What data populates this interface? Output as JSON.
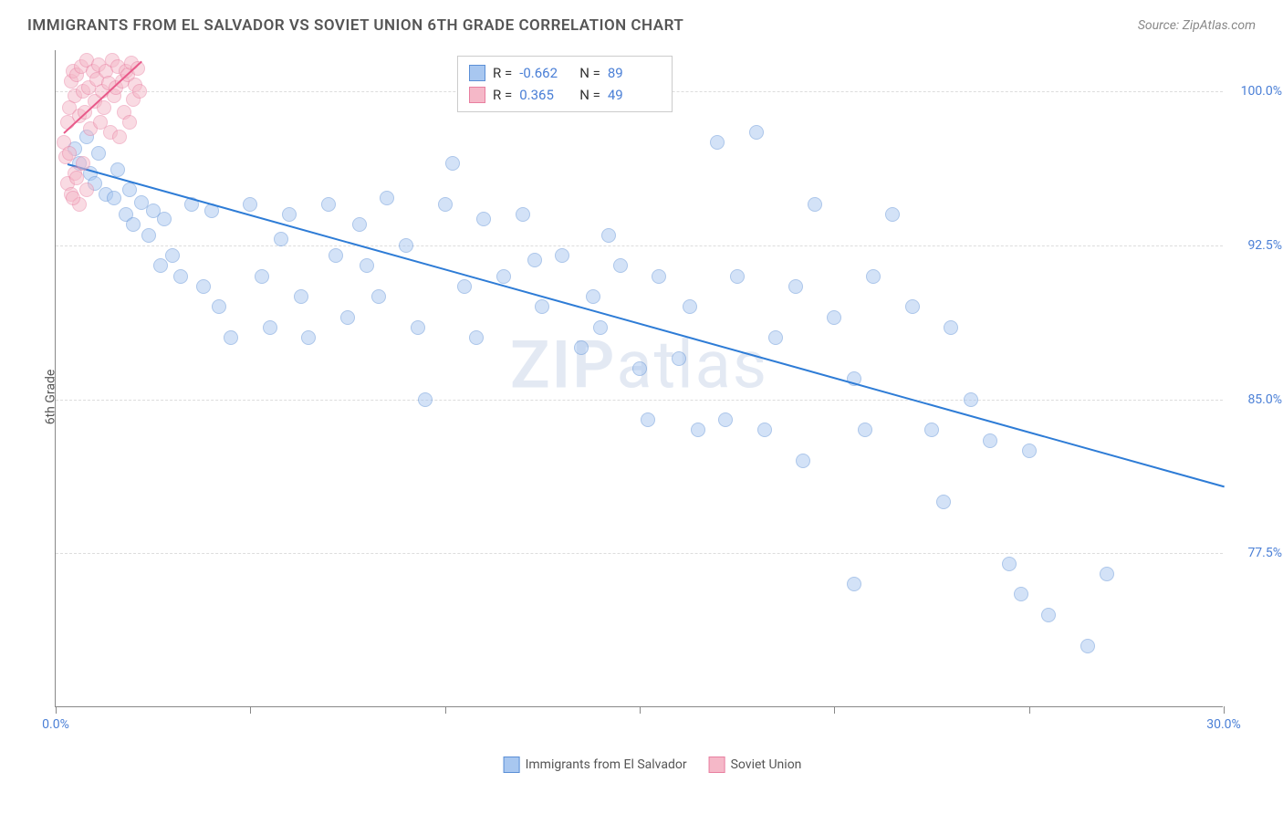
{
  "title": "IMMIGRANTS FROM EL SALVADOR VS SOVIET UNION 6TH GRADE CORRELATION CHART",
  "source_prefix": "Source: ",
  "source_name": "ZipAtlas.com",
  "y_axis_label": "6th Grade",
  "watermark_bold": "ZIP",
  "watermark_rest": "atlas",
  "chart": {
    "type": "scatter",
    "background_color": "#ffffff",
    "grid_color": "#dddddd",
    "axis_color": "#888888",
    "xlim": [
      0,
      30
    ],
    "ylim": [
      70,
      102
    ],
    "x_ticks": [
      0,
      5,
      10,
      15,
      20,
      25,
      30
    ],
    "x_tick_labels": [
      {
        "pos": 0,
        "label": "0.0%"
      },
      {
        "pos": 30,
        "label": "30.0%"
      }
    ],
    "y_gridlines": [
      77.5,
      85.0,
      92.5,
      100.0
    ],
    "y_tick_labels": [
      {
        "pos": 77.5,
        "label": "77.5%"
      },
      {
        "pos": 85.0,
        "label": "85.0%"
      },
      {
        "pos": 92.5,
        "label": "92.5%"
      },
      {
        "pos": 100.0,
        "label": "100.0%"
      }
    ],
    "marker_radius": 8,
    "marker_opacity": 0.5,
    "series": [
      {
        "name": "Immigrants from El Salvador",
        "color_fill": "#a8c7f0",
        "color_stroke": "#5b8fd6",
        "r_label": "R =",
        "r_value": "-0.662",
        "n_label": "N =",
        "n_value": "89",
        "trendline": {
          "x1": 0.3,
          "y1": 96.5,
          "x2": 30,
          "y2": 80.8,
          "color": "#2e7cd6",
          "width": 2
        },
        "points": [
          [
            0.5,
            97.2
          ],
          [
            0.6,
            96.5
          ],
          [
            0.8,
            97.8
          ],
          [
            0.9,
            96.0
          ],
          [
            1.0,
            95.5
          ],
          [
            1.1,
            97.0
          ],
          [
            1.3,
            95.0
          ],
          [
            1.5,
            94.8
          ],
          [
            1.6,
            96.2
          ],
          [
            1.8,
            94.0
          ],
          [
            1.9,
            95.2
          ],
          [
            2.0,
            93.5
          ],
          [
            2.2,
            94.6
          ],
          [
            2.4,
            93.0
          ],
          [
            2.5,
            94.2
          ],
          [
            2.7,
            91.5
          ],
          [
            2.8,
            93.8
          ],
          [
            3.0,
            92.0
          ],
          [
            3.2,
            91.0
          ],
          [
            3.5,
            94.5
          ],
          [
            3.8,
            90.5
          ],
          [
            4.0,
            94.2
          ],
          [
            4.2,
            89.5
          ],
          [
            4.5,
            88.0
          ],
          [
            5.0,
            94.5
          ],
          [
            5.3,
            91.0
          ],
          [
            5.5,
            88.5
          ],
          [
            5.8,
            92.8
          ],
          [
            6.0,
            94.0
          ],
          [
            6.3,
            90.0
          ],
          [
            6.5,
            88.0
          ],
          [
            7.0,
            94.5
          ],
          [
            7.2,
            92.0
          ],
          [
            7.5,
            89.0
          ],
          [
            7.8,
            93.5
          ],
          [
            8.0,
            91.5
          ],
          [
            8.3,
            90.0
          ],
          [
            8.5,
            94.8
          ],
          [
            9.0,
            92.5
          ],
          [
            9.3,
            88.5
          ],
          [
            9.5,
            85.0
          ],
          [
            10.0,
            94.5
          ],
          [
            10.2,
            96.5
          ],
          [
            10.5,
            90.5
          ],
          [
            10.8,
            88.0
          ],
          [
            11.0,
            93.8
          ],
          [
            11.5,
            91.0
          ],
          [
            12.0,
            94.0
          ],
          [
            12.3,
            91.8
          ],
          [
            12.5,
            89.5
          ],
          [
            13.0,
            92.0
          ],
          [
            13.5,
            87.5
          ],
          [
            13.8,
            90.0
          ],
          [
            14.0,
            88.5
          ],
          [
            14.5,
            91.5
          ],
          [
            15.0,
            86.5
          ],
          [
            15.2,
            84.0
          ],
          [
            15.5,
            91.0
          ],
          [
            16.0,
            87.0
          ],
          [
            16.3,
            89.5
          ],
          [
            16.5,
            83.5
          ],
          [
            17.0,
            97.5
          ],
          [
            17.2,
            84.0
          ],
          [
            17.5,
            91.0
          ],
          [
            18.0,
            98.0
          ],
          [
            18.2,
            83.5
          ],
          [
            18.5,
            88.0
          ],
          [
            19.0,
            90.5
          ],
          [
            19.5,
            94.5
          ],
          [
            20.0,
            89.0
          ],
          [
            20.5,
            86.0
          ],
          [
            20.8,
            83.5
          ],
          [
            21.0,
            91.0
          ],
          [
            21.5,
            94.0
          ],
          [
            22.0,
            89.5
          ],
          [
            22.5,
            83.5
          ],
          [
            23.0,
            88.5
          ],
          [
            23.5,
            85.0
          ],
          [
            24.0,
            83.0
          ],
          [
            25.0,
            82.5
          ],
          [
            20.5,
            76.0
          ],
          [
            24.5,
            77.0
          ],
          [
            24.8,
            75.5
          ],
          [
            26.5,
            73.0
          ],
          [
            27.0,
            76.5
          ],
          [
            25.5,
            74.5
          ],
          [
            22.8,
            80.0
          ],
          [
            19.2,
            82.0
          ],
          [
            14.2,
            93.0
          ]
        ]
      },
      {
        "name": "Soviet Union",
        "color_fill": "#f5b8c8",
        "color_stroke": "#e87fa0",
        "r_label": "R =",
        "r_value": " 0.365",
        "n_label": "N =",
        "n_value": "49",
        "trendline": {
          "x1": 0.2,
          "y1": 98.0,
          "x2": 2.2,
          "y2": 101.5,
          "color": "#e85a8a",
          "width": 2
        },
        "points": [
          [
            0.2,
            97.5
          ],
          [
            0.3,
            98.5
          ],
          [
            0.35,
            99.2
          ],
          [
            0.4,
            100.5
          ],
          [
            0.45,
            101.0
          ],
          [
            0.5,
            99.8
          ],
          [
            0.55,
            100.8
          ],
          [
            0.6,
            98.8
          ],
          [
            0.65,
            101.2
          ],
          [
            0.7,
            100.0
          ],
          [
            0.75,
            99.0
          ],
          [
            0.8,
            101.5
          ],
          [
            0.85,
            100.2
          ],
          [
            0.9,
            98.2
          ],
          [
            0.95,
            101.0
          ],
          [
            1.0,
            99.5
          ],
          [
            1.05,
            100.6
          ],
          [
            1.1,
            101.3
          ],
          [
            1.15,
            98.5
          ],
          [
            1.2,
            100.0
          ],
          [
            1.25,
            99.2
          ],
          [
            1.3,
            101.0
          ],
          [
            1.35,
            100.4
          ],
          [
            1.4,
            98.0
          ],
          [
            1.45,
            101.5
          ],
          [
            1.5,
            99.8
          ],
          [
            1.55,
            100.2
          ],
          [
            1.6,
            101.2
          ],
          [
            1.65,
            97.8
          ],
          [
            1.7,
            100.5
          ],
          [
            1.75,
            99.0
          ],
          [
            1.8,
            101.0
          ],
          [
            1.85,
            100.8
          ],
          [
            1.9,
            98.5
          ],
          [
            1.95,
            101.4
          ],
          [
            2.0,
            99.6
          ],
          [
            2.05,
            100.3
          ],
          [
            2.1,
            101.1
          ],
          [
            2.15,
            100.0
          ],
          [
            0.25,
            96.8
          ],
          [
            0.3,
            95.5
          ],
          [
            0.4,
            95.0
          ],
          [
            0.5,
            96.0
          ],
          [
            0.6,
            94.5
          ],
          [
            0.35,
            97.0
          ],
          [
            0.55,
            95.8
          ],
          [
            0.7,
            96.5
          ],
          [
            0.45,
            94.8
          ],
          [
            0.8,
            95.2
          ]
        ]
      }
    ]
  },
  "bottom_legend": [
    {
      "label": "Immigrants from El Salvador",
      "fill": "#a8c7f0",
      "stroke": "#5b8fd6"
    },
    {
      "label": "Soviet Union",
      "fill": "#f5b8c8",
      "stroke": "#e87fa0"
    }
  ]
}
